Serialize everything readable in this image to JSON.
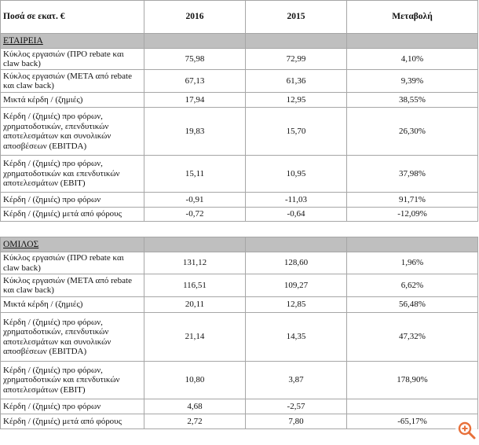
{
  "table": {
    "header": [
      "Ποσά σε εκατ. €",
      "2016",
      "2015",
      "Μεταβολή"
    ],
    "company": {
      "title": "ΕΤΑΙΡΕΙΑ",
      "rows": [
        {
          "label": "Κύκλος εργασιών (ΠΡΟ rebate και claw back)",
          "v2016": "75,98",
          "v2015": "72,99",
          "change": "4,10%"
        },
        {
          "label": "Κύκλος εργασιών (ΜΕΤΑ από rebate και claw back)",
          "v2016": "67,13",
          "v2015": "61,36",
          "change": "9,39%"
        },
        {
          "label": "Μικτά κέρδη / (ζημιές)",
          "v2016": "17,94",
          "v2015": "12,95",
          "change": "38,55%"
        },
        {
          "label": "Κέρδη / (ζημιές) προ φόρων, χρηματοδοτικών, επενδυτικών αποτελεσμάτων και συνολικών αποσβέσεων (EBITDA)",
          "v2016": "19,83",
          "v2015": "15,70",
          "change": "26,30%"
        },
        {
          "label": "Κέρδη / (ζημιές) προ φόρων, χρηματοδοτικών και επενδυτικών αποτελεσμάτων (EBIT)",
          "v2016": "15,11",
          "v2015": "10,95",
          "change": "37,98%"
        },
        {
          "label": "Κέρδη / (ζημιές) προ φόρων",
          "v2016": "-0,91",
          "v2015": "-11,03",
          "change": "91,71%"
        },
        {
          "label": "Κέρδη / (ζημιές) μετά από φόρους",
          "v2016": "-0,72",
          "v2015": "-0,64",
          "change": "-12,09%"
        }
      ]
    },
    "group": {
      "title": "ΟΜΙΛΟΣ",
      "rows": [
        {
          "label": "Κύκλος εργασιών (ΠΡΟ rebate και claw back)",
          "v2016": "131,12",
          "v2015": "128,60",
          "change": "1,96%"
        },
        {
          "label": "Κύκλος εργασιών (ΜΕΤΑ από rebate και claw back)",
          "v2016": "116,51",
          "v2015": "109,27",
          "change": "6,62%"
        },
        {
          "label": "Μικτά κέρδη / (ζημιές)",
          "v2016": "20,11",
          "v2015": "12,85",
          "change": "56,48%"
        },
        {
          "label": "Κέρδη / (ζημιές) προ φόρων, χρηματοδοτικών, επενδυτικών αποτελεσμάτων και συνολικών αποσβέσεων (EBITDA)",
          "v2016": "21,14",
          "v2015": "14,35",
          "change": "47,32%"
        },
        {
          "label": "Κέρδη / (ζημιές) προ φόρων, χρηματοδοτικών και επενδυτικών αποτελεσμάτων (EBIT)",
          "v2016": "10,80",
          "v2015": "3,87",
          "change": "178,90%"
        },
        {
          "label": "Κέρδη / (ζημιές) προ φόρων",
          "v2016": "4,68",
          "v2015": "-2,57",
          "change": ""
        },
        {
          "label": "Κέρδη / (ζημιές) μετά από φόρους",
          "v2016": "2,72",
          "v2015": "7,80",
          "change": "-65,17%"
        }
      ]
    }
  },
  "icons": {
    "zoom": "zoom-in-icon",
    "zoom_color": "#e8703a"
  }
}
